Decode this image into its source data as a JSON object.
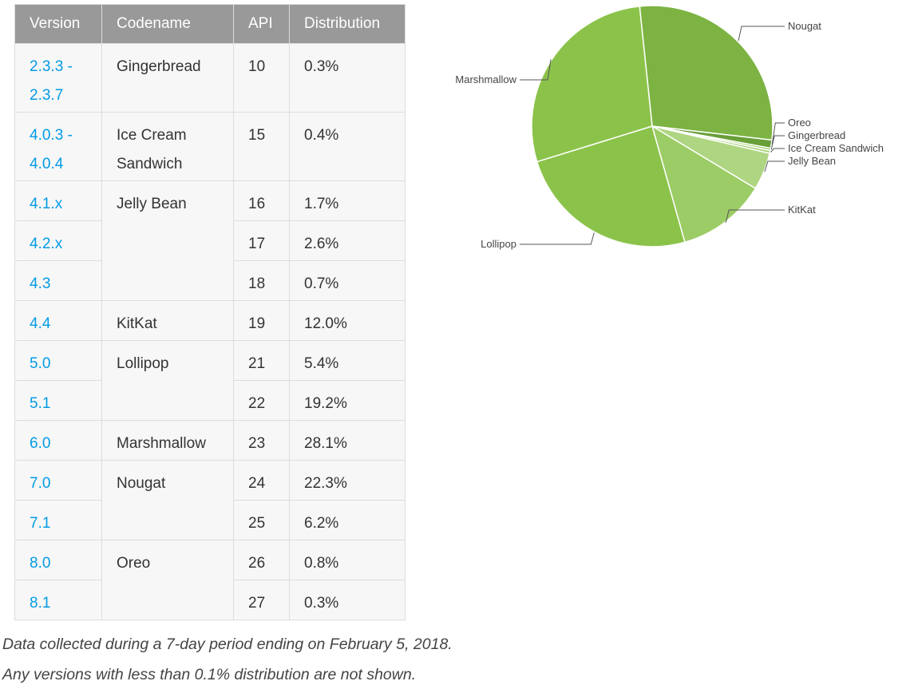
{
  "table": {
    "headers": [
      "Version",
      "Codename",
      "API",
      "Distribution"
    ],
    "rows": [
      {
        "version": "2.3.3 -\n2.3.7",
        "codename": "Gingerbread",
        "api": "10",
        "dist": "0.3%"
      },
      {
        "version": "4.0.3 -\n4.0.4",
        "codename": "Ice Cream\nSandwich",
        "api": "15",
        "dist": "0.4%"
      },
      {
        "version": "4.1.x",
        "codename": "Jelly Bean",
        "api": "16",
        "dist": "1.7%"
      },
      {
        "version": "4.2.x",
        "codename": "",
        "api": "17",
        "dist": "2.6%"
      },
      {
        "version": "4.3",
        "codename": "",
        "api": "18",
        "dist": "0.7%"
      },
      {
        "version": "4.4",
        "codename": "KitKat",
        "api": "19",
        "dist": "12.0%"
      },
      {
        "version": "5.0",
        "codename": "Lollipop",
        "api": "21",
        "dist": "5.4%"
      },
      {
        "version": "5.1",
        "codename": "",
        "api": "22",
        "dist": "19.2%"
      },
      {
        "version": "6.0",
        "codename": "Marshmallow",
        "api": "23",
        "dist": "28.1%"
      },
      {
        "version": "7.0",
        "codename": "Nougat",
        "api": "24",
        "dist": "22.3%"
      },
      {
        "version": "7.1",
        "codename": "",
        "api": "25",
        "dist": "6.2%"
      },
      {
        "version": "8.0",
        "codename": "Oreo",
        "api": "26",
        "dist": "0.8%"
      },
      {
        "version": "8.1",
        "codename": "",
        "api": "27",
        "dist": "0.3%"
      }
    ]
  },
  "chart_data": {
    "type": "pie",
    "title": "",
    "categories": [
      "Nougat",
      "Oreo",
      "Gingerbread",
      "Ice Cream Sandwich",
      "Jelly Bean",
      "KitKat",
      "Lollipop",
      "Marshmallow"
    ],
    "values": [
      28.5,
      1.1,
      0.3,
      0.4,
      5.0,
      12.0,
      24.6,
      28.1
    ],
    "colors": [
      "#7cb342",
      "#689f38",
      "#9ccc65",
      "#aed581",
      "#aed581",
      "#9ccc65",
      "#8bc34a",
      "#8bc34a"
    ],
    "labels": [
      "Nougat",
      "Oreo",
      "Gingerbread",
      "Ice Cream Sandwich",
      "Jelly Bean",
      "KitKat",
      "Lollipop",
      "Marshmallow"
    ]
  },
  "footnotes": [
    "Data collected during a 7-day period ending on February 5, 2018.",
    "Any versions with less than 0.1% distribution are not shown."
  ]
}
